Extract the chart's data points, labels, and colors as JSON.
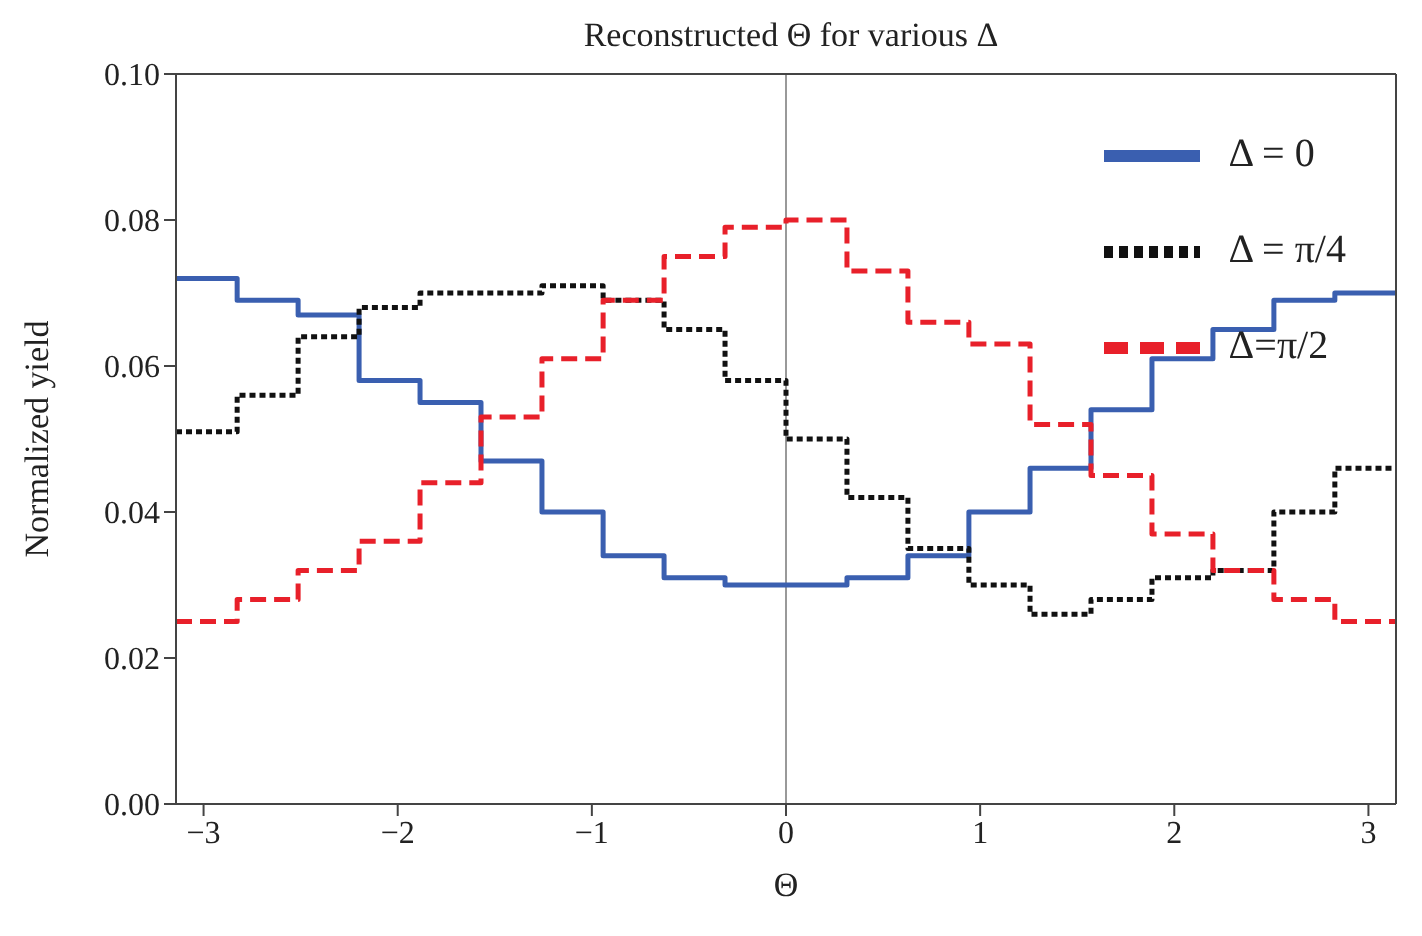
{
  "chart_data": {
    "type": "histogram",
    "title": "Reconstructed Θ for various Δ",
    "xlabel": "Θ",
    "ylabel": "Normalized yield",
    "bins": [
      -3.142,
      -2.827,
      -2.513,
      -2.199,
      -1.885,
      -1.571,
      -1.257,
      -0.942,
      -0.628,
      -0.314,
      0,
      0.314,
      0.628,
      0.942,
      1.257,
      1.571,
      1.885,
      2.199,
      2.513,
      2.827,
      3.142
    ],
    "series": [
      {
        "name": "Δ = 0",
        "color": "#3a5fb0",
        "line_style": "solid",
        "values": [
          0.072,
          0.069,
          0.067,
          0.058,
          0.055,
          0.047,
          0.04,
          0.034,
          0.031,
          0.03,
          0.03,
          0.031,
          0.034,
          0.04,
          0.046,
          0.054,
          0.061,
          0.065,
          0.069,
          0.07
        ]
      },
      {
        "name": "Δ = π/4",
        "color": "#111111",
        "line_style": "dotted",
        "values": [
          0.051,
          0.056,
          0.064,
          0.068,
          0.07,
          0.07,
          0.071,
          0.069,
          0.065,
          0.058,
          0.05,
          0.042,
          0.035,
          0.03,
          0.026,
          0.028,
          0.031,
          0.032,
          0.04,
          0.046
        ]
      },
      {
        "name": "Δ=π/2",
        "color": "#e8202a",
        "line_style": "dashed",
        "values": [
          0.025,
          0.028,
          0.032,
          0.036,
          0.044,
          0.053,
          0.061,
          0.069,
          0.075,
          0.079,
          0.08,
          0.073,
          0.066,
          0.063,
          0.052,
          0.045,
          0.037,
          0.032,
          0.028,
          0.025
        ]
      }
    ],
    "xlim": [
      -3.142,
      3.142
    ],
    "xticks": [
      -3,
      -2,
      -1,
      0,
      1,
      2,
      3
    ],
    "ylim": [
      0,
      0.1
    ],
    "yticks": [
      {
        "value": 0,
        "label": "0.00"
      },
      {
        "value": 0.02,
        "label": "0.02"
      },
      {
        "value": 0.04,
        "label": "0.04"
      },
      {
        "value": 0.06,
        "label": "0.06"
      },
      {
        "value": 0.08,
        "label": "0.08"
      },
      {
        "value": 0.1,
        "label": "0.10"
      }
    ],
    "ref_lines": [
      {
        "axis": "x",
        "value": 0,
        "color": "#999999"
      }
    ],
    "legend": "top right"
  }
}
